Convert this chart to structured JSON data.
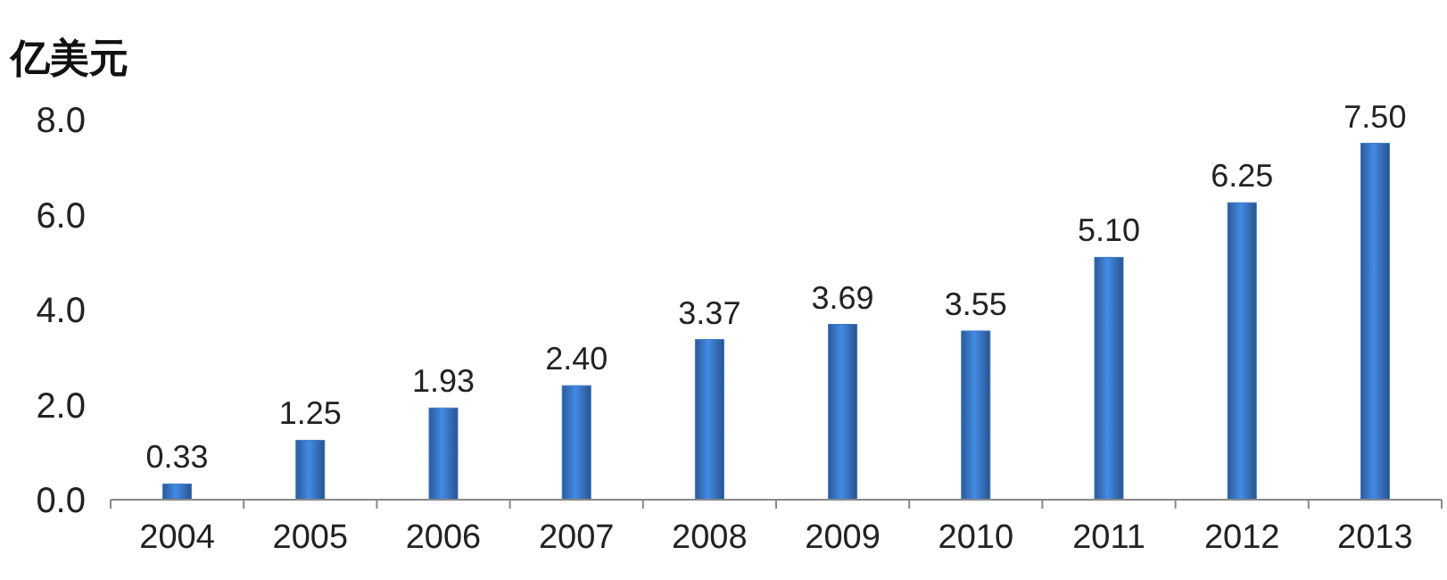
{
  "chart_data": {
    "type": "bar",
    "ylabel": "亿美元",
    "categories": [
      "2004",
      "2005",
      "2006",
      "2007",
      "2008",
      "2009",
      "2010",
      "2011",
      "2012",
      "2013"
    ],
    "values": [
      0.33,
      1.25,
      1.93,
      2.4,
      3.37,
      3.69,
      3.55,
      5.1,
      6.25,
      7.5
    ],
    "value_labels": [
      "0.33",
      "1.25",
      "1.93",
      "2.40",
      "3.37",
      "3.69",
      "3.55",
      "5.10",
      "6.25",
      "7.50"
    ],
    "color": "#3a78c8",
    "ylim": [
      0,
      8
    ],
    "yticks": [
      {
        "value": 0,
        "label": "0.0"
      },
      {
        "value": 2,
        "label": "2.0"
      },
      {
        "value": 4,
        "label": "4.0"
      },
      {
        "value": 6,
        "label": "6.0"
      },
      {
        "value": 8,
        "label": "8.0"
      }
    ],
    "grid": false
  }
}
